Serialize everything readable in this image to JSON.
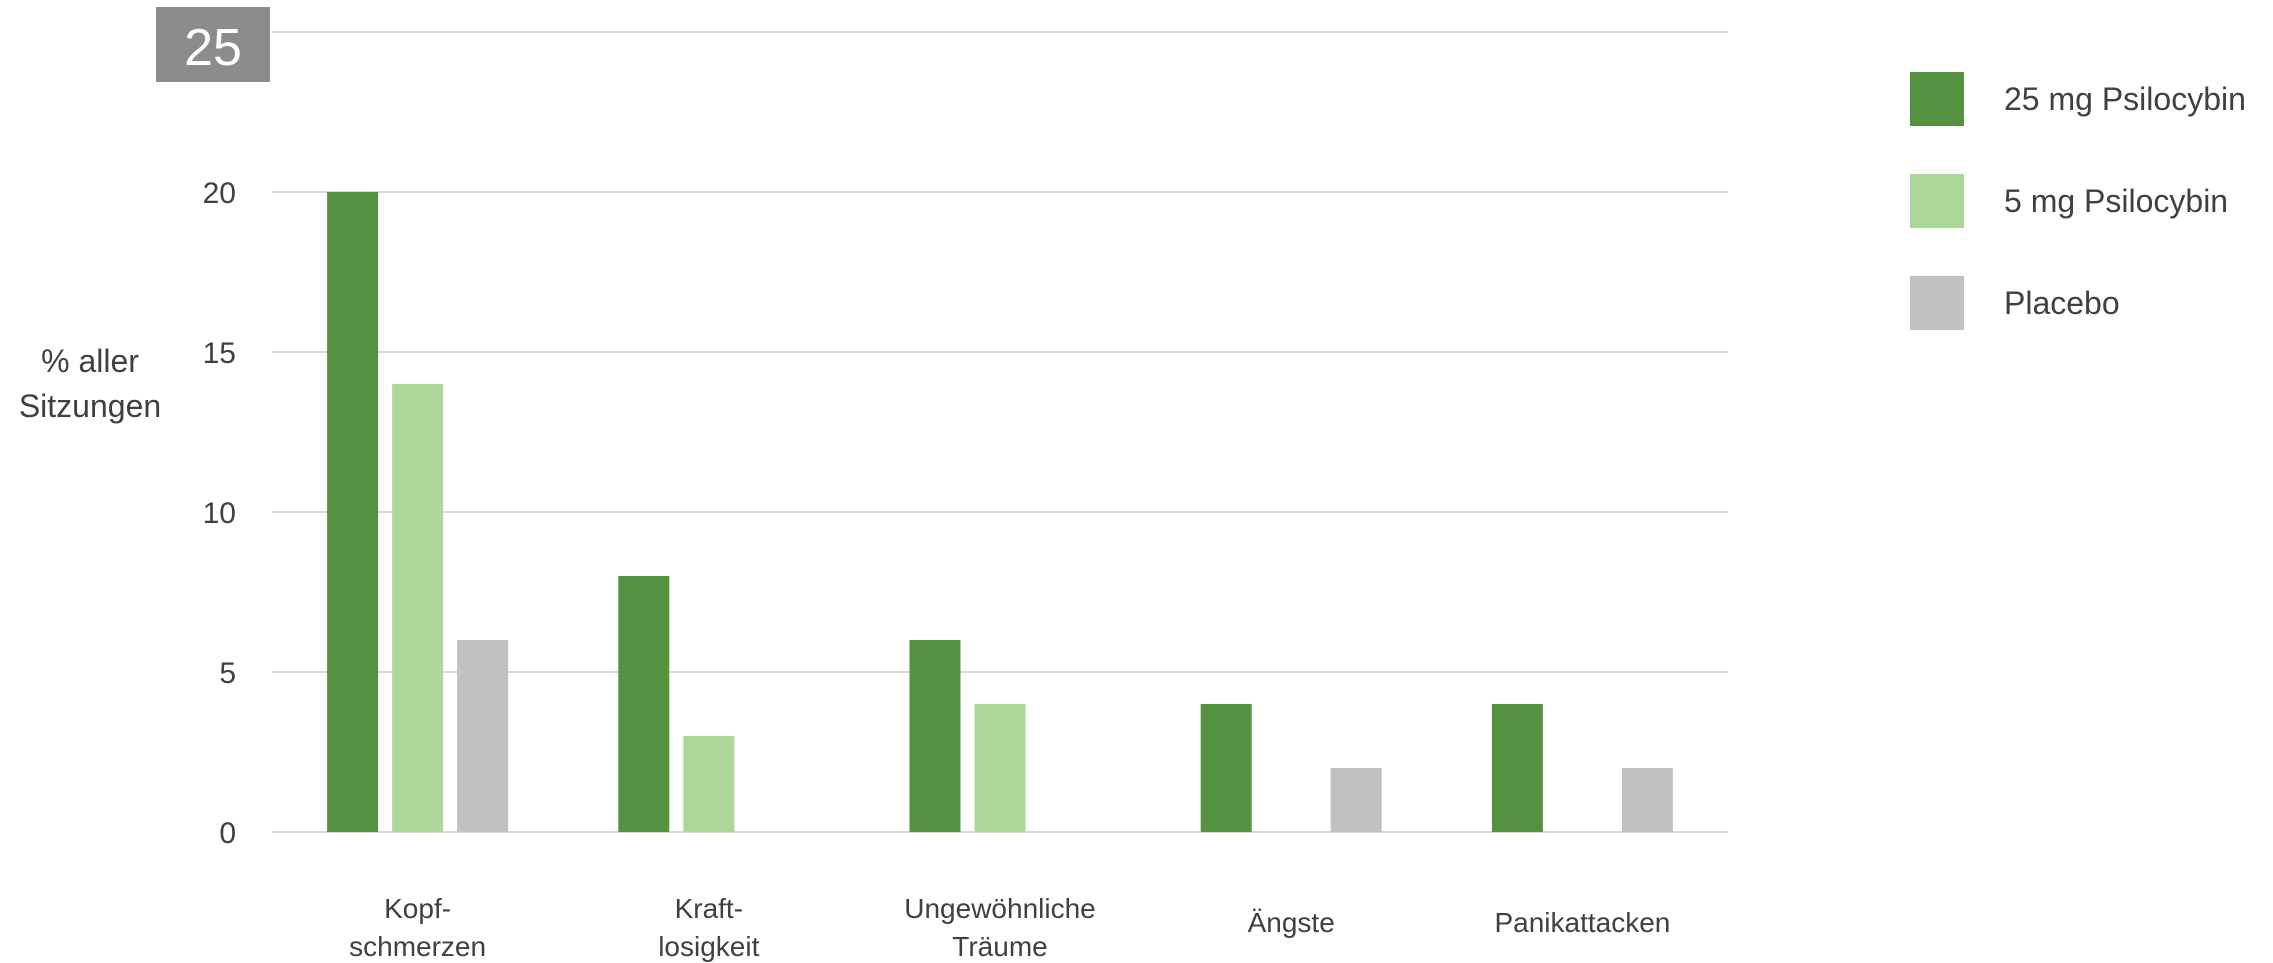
{
  "badge": {
    "text": "25",
    "color": "#8c8c8c"
  },
  "chart_data": {
    "type": "bar",
    "title": "",
    "ylabel": [
      "% aller",
      "Sitzungen"
    ],
    "xlabel": "",
    "ylim": [
      0,
      25
    ],
    "yticks": [
      0,
      5,
      10,
      15,
      20
    ],
    "grid": true,
    "legend_position": "right",
    "categories": [
      [
        "Kopf-",
        "schmerzen"
      ],
      [
        "Kraft-",
        "losigkeit"
      ],
      [
        "Ungewöhnliche",
        "Träume"
      ],
      [
        "Ängste"
      ],
      [
        "Panikattacken"
      ]
    ],
    "series": [
      {
        "name": "25 mg Psilocybin",
        "color": "#549140",
        "values": [
          20,
          8,
          6,
          4,
          4
        ]
      },
      {
        "name": "5 mg Psilocybin",
        "color": "#add69b",
        "values": [
          14,
          3,
          4,
          0,
          0
        ]
      },
      {
        "name": "Placebo",
        "color": "#c0c1c0",
        "values": [
          6,
          0,
          0,
          2,
          2
        ]
      }
    ]
  }
}
